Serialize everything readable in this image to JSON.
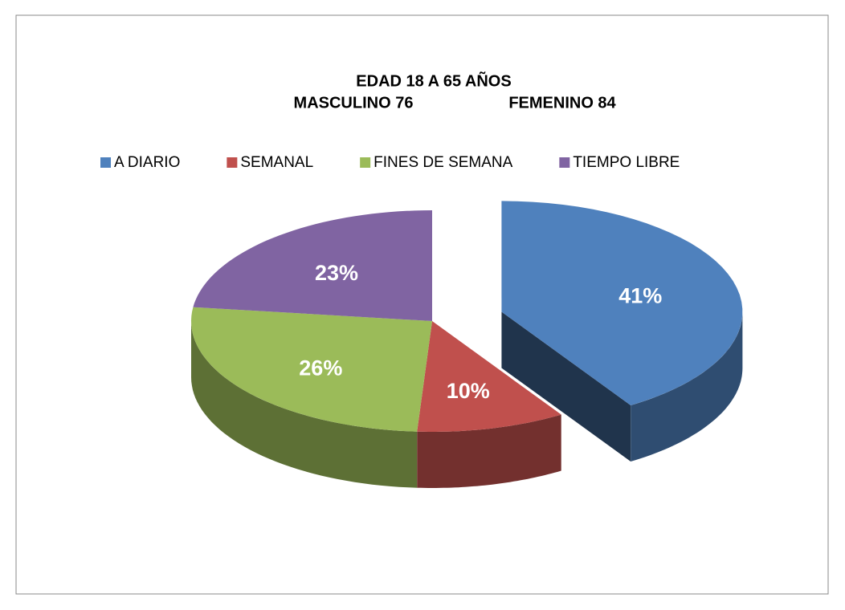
{
  "chart_data": {
    "type": "pie",
    "title": "EDAD 18 A 65 AÑOS",
    "subtitle": [
      "MASCULINO 76",
      "FEMENINO 84"
    ],
    "categories": [
      "A DIARIO",
      "SEMANAL",
      "FINES DE SEMANA",
      "TIEMPO LIBRE"
    ],
    "values": [
      41,
      10,
      26,
      23
    ],
    "value_labels": [
      "41%",
      "10%",
      "26%",
      "23%"
    ],
    "colors": [
      "#4f81bd",
      "#c0504d",
      "#9bbb59",
      "#8064a2"
    ],
    "exploded": [
      0
    ],
    "legend": "top"
  }
}
